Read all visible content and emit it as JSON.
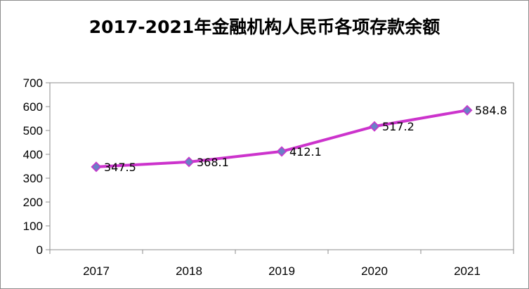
{
  "chart_data": {
    "type": "line",
    "title": "2017-2021年金融机构人民币各项存款余额",
    "categories": [
      "2017",
      "2018",
      "2019",
      "2020",
      "2021"
    ],
    "series": [
      {
        "values": [
          347.5,
          368.1,
          412.1,
          517.2,
          584.8
        ],
        "labels": [
          "347.5",
          "368.1",
          "412.1",
          "517.2",
          "584.8"
        ],
        "color": "#cc33cc",
        "marker_color": "#6b7fc7"
      }
    ],
    "ylim": [
      0,
      700
    ],
    "yticks": [
      "0",
      "100",
      "200",
      "300",
      "400",
      "500",
      "600",
      "700"
    ],
    "xlabel": "",
    "ylabel": "",
    "grid": false,
    "legend": "none"
  }
}
